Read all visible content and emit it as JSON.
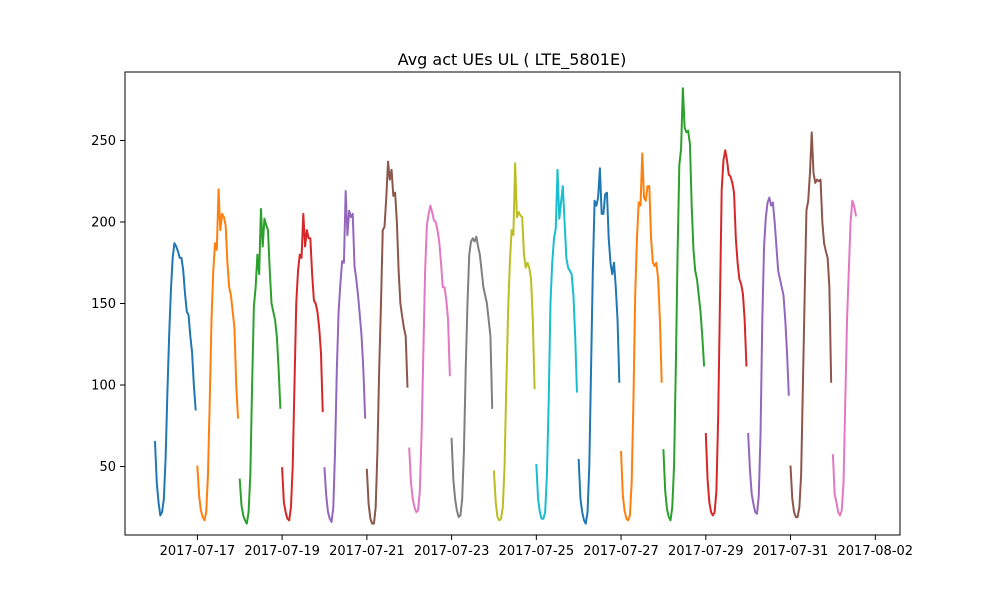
{
  "chart_data": {
    "type": "line",
    "title": "Avg act UEs UL ( LTE_5801E)",
    "xlabel": "",
    "ylabel": "",
    "x_ticks": [
      "2017-07-17",
      "2017-07-19",
      "2017-07-21",
      "2017-07-23",
      "2017-07-25",
      "2017-07-27",
      "2017-07-29",
      "2017-07-31",
      "2017-08-02"
    ],
    "y_ticks": [
      50,
      100,
      150,
      200,
      250
    ],
    "xlim": [
      "2017-07-15 07:00",
      "2017-08-02 14:00"
    ],
    "ylim": [
      8,
      292
    ],
    "grid": false,
    "colors": [
      "#1f77b4",
      "#ff7f0e",
      "#2ca02c",
      "#d62728",
      "#9467bd",
      "#8c564b",
      "#e377c2",
      "#7f7f7f",
      "#bcbd22",
      "#17becf"
    ],
    "series": [
      {
        "date": "2017-07-16",
        "hours": [
          0,
          1,
          2,
          3,
          4,
          5,
          6,
          7,
          8,
          9,
          10,
          11,
          12,
          13,
          14,
          15,
          16,
          17,
          18,
          19,
          20,
          21,
          22,
          23
        ],
        "values": [
          65,
          40,
          28,
          20,
          22,
          30,
          55,
          95,
          130,
          158,
          178,
          187,
          185,
          182,
          178,
          178,
          170,
          156,
          145,
          143,
          130,
          120,
          100,
          85
        ]
      },
      {
        "date": "2017-07-17",
        "hours": [
          0,
          1,
          2,
          3,
          4,
          5,
          6,
          7,
          8,
          9,
          10,
          11,
          12,
          13,
          14,
          15,
          16,
          17,
          18,
          19,
          20,
          21,
          22,
          23
        ],
        "values": [
          50,
          32,
          23,
          19,
          17,
          22,
          45,
          90,
          140,
          170,
          187,
          183,
          220,
          195,
          205,
          203,
          198,
          175,
          160,
          155,
          145,
          135,
          100,
          80
        ]
      },
      {
        "date": "2017-07-18",
        "hours": [
          0,
          1,
          2,
          3,
          4,
          5,
          6,
          7,
          8,
          9,
          10,
          11,
          12,
          13,
          14,
          15,
          16,
          17,
          18,
          19,
          20,
          21,
          22,
          23
        ],
        "values": [
          42,
          26,
          20,
          17,
          15,
          22,
          45,
          100,
          148,
          160,
          180,
          168,
          208,
          185,
          202,
          198,
          195,
          170,
          150,
          145,
          140,
          130,
          110,
          86
        ]
      },
      {
        "date": "2017-07-19",
        "hours": [
          0,
          1,
          2,
          3,
          4,
          5,
          6,
          7,
          8,
          9,
          10,
          11,
          12,
          13,
          14,
          15,
          16,
          17,
          18,
          19,
          20,
          21,
          22,
          23
        ],
        "values": [
          49,
          28,
          22,
          18,
          17,
          25,
          50,
          100,
          150,
          170,
          180,
          178,
          205,
          185,
          195,
          190,
          190,
          168,
          152,
          150,
          145,
          135,
          120,
          84
        ]
      },
      {
        "date": "2017-07-20",
        "hours": [
          0,
          1,
          2,
          3,
          4,
          5,
          6,
          7,
          8,
          9,
          10,
          11,
          12,
          13,
          14,
          15,
          16,
          17,
          18,
          19,
          20,
          21,
          22,
          23
        ],
        "values": [
          49,
          32,
          22,
          18,
          16,
          25,
          60,
          110,
          145,
          162,
          176,
          175,
          219,
          192,
          207,
          203,
          205,
          173,
          165,
          155,
          143,
          130,
          110,
          80
        ]
      },
      {
        "date": "2017-07-21",
        "hours": [
          0,
          1,
          2,
          3,
          4,
          5,
          6,
          7,
          8,
          9,
          10,
          11,
          12,
          13,
          14,
          15,
          16,
          17,
          18,
          19,
          20,
          21,
          22,
          23
        ],
        "values": [
          48,
          27,
          18,
          15,
          15,
          25,
          60,
          110,
          150,
          195,
          197,
          215,
          237,
          226,
          232,
          216,
          218,
          200,
          170,
          150,
          142,
          135,
          130,
          99
        ]
      },
      {
        "date": "2017-07-22",
        "hours": [
          0,
          1,
          2,
          3,
          4,
          5,
          6,
          7,
          8,
          9,
          10,
          11,
          12,
          13,
          14,
          15,
          16,
          17,
          18,
          19,
          20,
          21,
          22,
          23
        ],
        "values": [
          61,
          40,
          30,
          25,
          22,
          23,
          35,
          70,
          120,
          170,
          198,
          205,
          210,
          206,
          201,
          200,
          195,
          188,
          175,
          160,
          160,
          152,
          140,
          106
        ]
      },
      {
        "date": "2017-07-23",
        "hours": [
          0,
          1,
          2,
          3,
          4,
          5,
          6,
          7,
          8,
          9,
          10,
          11,
          12,
          13,
          14,
          15,
          16,
          17,
          18,
          19,
          20,
          21,
          22,
          23
        ],
        "values": [
          67,
          42,
          30,
          23,
          19,
          20,
          30,
          60,
          110,
          150,
          180,
          188,
          190,
          188,
          191,
          185,
          180,
          170,
          160,
          155,
          150,
          140,
          130,
          86
        ]
      },
      {
        "date": "2017-07-24",
        "hours": [
          0,
          1,
          2,
          3,
          4,
          5,
          6,
          7,
          8,
          9,
          10,
          11,
          12,
          13,
          14,
          15,
          16,
          17,
          18,
          19,
          20,
          21,
          22,
          23
        ],
        "values": [
          47,
          28,
          19,
          17,
          18,
          25,
          50,
          100,
          145,
          175,
          195,
          192,
          236,
          203,
          206,
          204,
          203,
          180,
          172,
          175,
          172,
          165,
          140,
          98
        ]
      },
      {
        "date": "2017-07-25",
        "hours": [
          0,
          1,
          2,
          3,
          4,
          5,
          6,
          7,
          8,
          9,
          10,
          11,
          12,
          13,
          14,
          15,
          16,
          17,
          18,
          19,
          20,
          21,
          22,
          23
        ],
        "values": [
          51,
          30,
          22,
          18,
          18,
          22,
          45,
          90,
          150,
          175,
          190,
          196,
          232,
          202,
          212,
          222,
          200,
          178,
          172,
          170,
          168,
          155,
          130,
          96
        ]
      },
      {
        "date": "2017-07-26",
        "hours": [
          0,
          1,
          2,
          3,
          4,
          5,
          6,
          7,
          8,
          9,
          10,
          11,
          12,
          13,
          14,
          15,
          16,
          17,
          18,
          19,
          20,
          21,
          22,
          23
        ],
        "values": [
          54,
          30,
          22,
          17,
          15,
          22,
          50,
          110,
          170,
          213,
          210,
          215,
          233,
          205,
          205,
          217,
          218,
          190,
          175,
          168,
          175,
          160,
          140,
          102
        ]
      },
      {
        "date": "2017-07-27",
        "hours": [
          0,
          1,
          2,
          3,
          4,
          5,
          6,
          7,
          8,
          9,
          10,
          11,
          12,
          13,
          14,
          15,
          16,
          17,
          18,
          19,
          20,
          21,
          22,
          23
        ],
        "values": [
          59,
          32,
          23,
          18,
          17,
          20,
          40,
          90,
          155,
          190,
          212,
          210,
          242,
          215,
          213,
          222,
          222,
          190,
          175,
          173,
          175,
          165,
          140,
          102
        ]
      },
      {
        "date": "2017-07-28",
        "hours": [
          0,
          1,
          2,
          3,
          4,
          5,
          6,
          7,
          8,
          9,
          10,
          11,
          12,
          13,
          14,
          15,
          16,
          17,
          18,
          19,
          20,
          21,
          22,
          23
        ],
        "values": [
          60,
          35,
          24,
          19,
          17,
          25,
          50,
          110,
          180,
          235,
          245,
          282,
          258,
          255,
          256,
          248,
          210,
          183,
          170,
          165,
          155,
          145,
          130,
          112
        ]
      },
      {
        "date": "2017-07-29",
        "hours": [
          0,
          1,
          2,
          3,
          4,
          5,
          6,
          7,
          8,
          9,
          10,
          11,
          12,
          13,
          14,
          15,
          16,
          17,
          18,
          19,
          20,
          21,
          22,
          23
        ],
        "values": [
          70,
          42,
          28,
          22,
          20,
          22,
          35,
          80,
          150,
          220,
          238,
          244,
          238,
          229,
          228,
          224,
          218,
          190,
          175,
          165,
          162,
          156,
          140,
          112
        ]
      },
      {
        "date": "2017-07-30",
        "hours": [
          0,
          1,
          2,
          3,
          4,
          5,
          6,
          7,
          8,
          9,
          10,
          11,
          12,
          13,
          14,
          15,
          16,
          17,
          18,
          19,
          20,
          21,
          22,
          23
        ],
        "values": [
          70,
          48,
          33,
          27,
          22,
          21,
          32,
          70,
          140,
          185,
          203,
          212,
          215,
          210,
          212,
          200,
          185,
          170,
          165,
          160,
          155,
          140,
          120,
          94
        ]
      },
      {
        "date": "2017-07-31",
        "hours": [
          0,
          1,
          2,
          3,
          4,
          5,
          6,
          7,
          8,
          9,
          10,
          11,
          12,
          13,
          14,
          15,
          16,
          17,
          18,
          19,
          20,
          21,
          22,
          23
        ],
        "values": [
          50,
          30,
          22,
          19,
          19,
          25,
          45,
          100,
          155,
          207,
          213,
          230,
          255,
          230,
          224,
          226,
          225,
          226,
          200,
          187,
          182,
          178,
          160,
          102
        ]
      },
      {
        "date": "2017-08-01",
        "hours": [
          0,
          1,
          2,
          3,
          4,
          5,
          6,
          7,
          8,
          9,
          10,
          11,
          12,
          13
        ],
        "values": [
          57,
          33,
          28,
          22,
          20,
          23,
          40,
          90,
          140,
          170,
          200,
          213,
          210,
          204
        ]
      }
    ]
  }
}
